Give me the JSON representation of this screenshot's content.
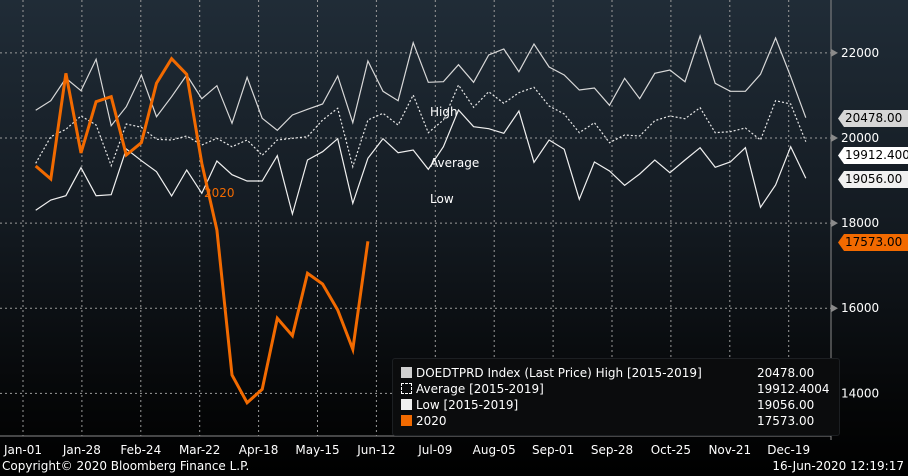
{
  "chart_data": {
    "type": "line",
    "title": "",
    "xlabel": "",
    "ylabel": "",
    "ylim": [
      13000,
      23000
    ],
    "y_ticks": [
      "22000",
      "20000",
      "18000",
      "16000",
      "14000"
    ],
    "y_tick_values": [
      22000,
      20000,
      18000,
      16000,
      14000
    ],
    "x_ticks": [
      "Jan-01",
      "Jan-28",
      "Feb-24",
      "Mar-22",
      "Apr-18",
      "May-15",
      "Jun-12",
      "Jul-09",
      "Aug-05",
      "Sep-01",
      "Sep-28",
      "Oct-25",
      "Nov-21",
      "Dec-19"
    ],
    "grid": true,
    "legend_placement": "bottom-right",
    "series": [
      {
        "name": "High",
        "color": "#d8d8d8",
        "style": "solid",
        "values": [
          20651,
          20877,
          21403,
          21112,
          21849,
          20289,
          20736,
          21481,
          20501,
          20971,
          21481,
          20924,
          21229,
          20345,
          21426,
          20463,
          20181,
          20541,
          20674,
          20799,
          21457,
          20360,
          21810,
          21097,
          20877,
          22240,
          21309,
          21323,
          21723,
          21309,
          21951,
          22092,
          21558,
          22209,
          21669,
          21481,
          21128,
          21175,
          20768,
          21403,
          20924,
          21520,
          21598,
          21323,
          22397,
          21285,
          21097,
          21097,
          21497,
          22350,
          21440,
          20478
        ]
      },
      {
        "name": "Average",
        "color": "#e8e8e8",
        "style": "dotted",
        "values": [
          19405,
          20031,
          20204,
          20517,
          20306,
          19349,
          20329,
          20251,
          19969,
          19953,
          20047,
          19836,
          19993,
          19796,
          19953,
          19593,
          19953,
          19993,
          20031,
          20423,
          20698,
          19326,
          20423,
          20580,
          20306,
          21011,
          20125,
          20423,
          21246,
          20721,
          21088,
          20815,
          21065,
          21191,
          20752,
          20564,
          20125,
          20360,
          19890,
          20071,
          20047,
          20407,
          20517,
          20454,
          20712,
          20125,
          20148,
          20235,
          19953,
          20877,
          20799,
          19912.4004
        ]
      },
      {
        "name": "Low",
        "color": "#f0f0f0",
        "style": "solid",
        "values": [
          18301,
          18543,
          18644,
          19302,
          18644,
          18668,
          19742,
          19467,
          19208,
          18637,
          19248,
          18700,
          19460,
          19138,
          18990,
          18990,
          19584,
          18214,
          19483,
          19678,
          19984,
          18465,
          19523,
          19984,
          19655,
          19718,
          19264,
          19796,
          20658,
          20266,
          20219,
          20110,
          20635,
          19429,
          19953,
          19734,
          18559,
          19436,
          19225,
          18888,
          19154,
          19483,
          19185,
          19483,
          19772,
          19311,
          19436,
          19772,
          18371,
          18896,
          19796,
          19056
        ]
      },
      {
        "name": "2020",
        "color": "#f26a00",
        "style": "solid-thick",
        "values": [
          19342,
          19036,
          21520,
          19647,
          20853,
          20971,
          19600,
          19890,
          21287,
          21864,
          21497,
          19405,
          17838,
          14430,
          13780,
          14094,
          15763,
          15355,
          16820,
          16569,
          15958,
          15034,
          17573
        ]
      }
    ],
    "annotations": {
      "high": "High",
      "average": "Average",
      "low": "Low",
      "y2020": "2020"
    }
  },
  "legend": [
    {
      "label": "DOEDTPRD Index (Last Price) High [2015-2019]",
      "value": "20478.00",
      "swatch": "#d0d0d0"
    },
    {
      "label": "Average [2015-2019]",
      "value": "19912.4004",
      "swatch": "dashed"
    },
    {
      "label": "Low [2015-2019]",
      "value": "19056.00",
      "swatch": "#f0f0f0"
    },
    {
      "label": "2020",
      "value": "17573.00",
      "swatch": "#f26a00"
    }
  ],
  "value_tags": {
    "high": "20478.00",
    "average": "19912.4004",
    "low": "19056.00",
    "y2020": "17573.00"
  },
  "footer": {
    "copyright": "Copyright© 2020 Bloomberg Finance L.P.",
    "timestamp": "16-Jun-2020 12:19:17"
  }
}
